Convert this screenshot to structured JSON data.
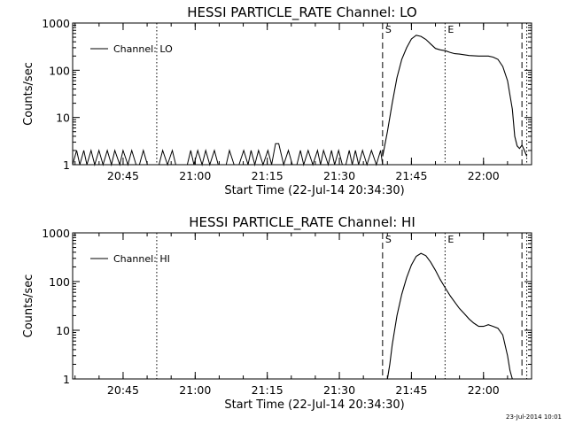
{
  "timestamp": "23-Jul-2014 10:01",
  "chart_data": [
    {
      "type": "line",
      "title": "HESSI PARTICLE_RATE Channel: LO",
      "xlabel": "Start Time (22-Jul-14 20:34:30)",
      "ylabel": "Counts/sec",
      "yscale": "log",
      "ylim": [
        1,
        1000
      ],
      "xlim": [
        "20:34:30",
        "22:10:00"
      ],
      "xticks": [
        "20:45",
        "21:00",
        "21:15",
        "21:30",
        "21:45",
        "22:00"
      ],
      "yticks": [
        "1",
        "10",
        "100",
        "1000"
      ],
      "legend": {
        "label": "Channel: LO",
        "position": "top-left"
      },
      "markers": [
        {
          "time": "20:52:00",
          "style": "dotted",
          "label": ""
        },
        {
          "time": "21:39:00",
          "style": "dashed",
          "label": "S"
        },
        {
          "time": "21:52:00",
          "style": "dotted",
          "label": "E"
        },
        {
          "time": "22:08:00",
          "style": "dashed",
          "label": ""
        },
        {
          "time": "22:09:00",
          "style": "dotted",
          "label": ""
        }
      ],
      "series": [
        {
          "name": "Channel: LO",
          "points": [
            [
              "21:39:00",
              1.5
            ],
            [
              "21:40:00",
              5
            ],
            [
              "21:41:00",
              20
            ],
            [
              "21:42:00",
              70
            ],
            [
              "21:43:00",
              170
            ],
            [
              "21:44:00",
              300
            ],
            [
              "21:45:00",
              460
            ],
            [
              "21:46:00",
              550
            ],
            [
              "21:47:00",
              520
            ],
            [
              "21:48:00",
              450
            ],
            [
              "21:49:00",
              360
            ],
            [
              "21:50:00",
              290
            ],
            [
              "21:51:00",
              270
            ],
            [
              "21:52:00",
              260
            ],
            [
              "21:53:00",
              240
            ],
            [
              "21:54:00",
              225
            ],
            [
              "21:55:00",
              220
            ],
            [
              "21:57:00",
              205
            ],
            [
              "21:59:00",
              200
            ],
            [
              "22:01:00",
              200
            ],
            [
              "22:02:00",
              190
            ],
            [
              "22:03:00",
              170
            ],
            [
              "22:04:00",
              120
            ],
            [
              "22:05:00",
              60
            ],
            [
              "22:06:00",
              15
            ],
            [
              "22:06:30",
              4
            ],
            [
              "22:07:00",
              2.5
            ],
            [
              "22:07:30",
              2.2
            ],
            [
              "22:08:00",
              2.6
            ],
            [
              "22:08:30",
              2.0
            ],
            [
              "22:09:00",
              1.5
            ]
          ],
          "background": {
            "from": "20:34:30",
            "to": "21:39:00",
            "low": 1,
            "high": 2,
            "spike": [
              "21:17:00",
              2.8
            ]
          }
        }
      ]
    },
    {
      "type": "line",
      "title": "HESSI PARTICLE_RATE Channel: HI",
      "xlabel": "Start Time (22-Jul-14 20:34:30)",
      "ylabel": "Counts/sec",
      "yscale": "log",
      "ylim": [
        1,
        1000
      ],
      "xlim": [
        "20:34:30",
        "22:10:00"
      ],
      "xticks": [
        "20:45",
        "21:00",
        "21:15",
        "21:30",
        "21:45",
        "22:00"
      ],
      "yticks": [
        "1",
        "10",
        "100",
        "1000"
      ],
      "legend": {
        "label": "Channel: HI",
        "position": "top-left"
      },
      "markers": [
        {
          "time": "20:52:00",
          "style": "dotted",
          "label": ""
        },
        {
          "time": "21:39:00",
          "style": "dashed",
          "label": "S"
        },
        {
          "time": "21:52:00",
          "style": "dotted",
          "label": "E"
        },
        {
          "time": "22:08:00",
          "style": "dashed",
          "label": ""
        },
        {
          "time": "22:09:00",
          "style": "dotted",
          "label": ""
        }
      ],
      "series": [
        {
          "name": "Channel: HI",
          "points": [
            [
              "21:40:00",
              1.0
            ],
            [
              "21:40:30",
              2
            ],
            [
              "21:41:00",
              5
            ],
            [
              "21:42:00",
              20
            ],
            [
              "21:43:00",
              55
            ],
            [
              "21:44:00",
              120
            ],
            [
              "21:45:00",
              220
            ],
            [
              "21:46:00",
              330
            ],
            [
              "21:47:00",
              380
            ],
            [
              "21:48:00",
              340
            ],
            [
              "21:49:00",
              250
            ],
            [
              "21:50:00",
              170
            ],
            [
              "21:51:00",
              110
            ],
            [
              "21:52:00",
              75
            ],
            [
              "21:53:00",
              52
            ],
            [
              "21:54:00",
              38
            ],
            [
              "21:55:00",
              28
            ],
            [
              "21:56:00",
              22
            ],
            [
              "21:57:00",
              17
            ],
            [
              "21:58:00",
              14
            ],
            [
              "21:59:00",
              12
            ],
            [
              "22:00:00",
              12
            ],
            [
              "22:01:00",
              13
            ],
            [
              "22:02:00",
              12
            ],
            [
              "22:03:00",
              11
            ],
            [
              "22:04:00",
              8
            ],
            [
              "22:05:00",
              3
            ],
            [
              "22:05:30",
              1.5
            ],
            [
              "22:06:00",
              1.0
            ]
          ]
        }
      ]
    }
  ]
}
